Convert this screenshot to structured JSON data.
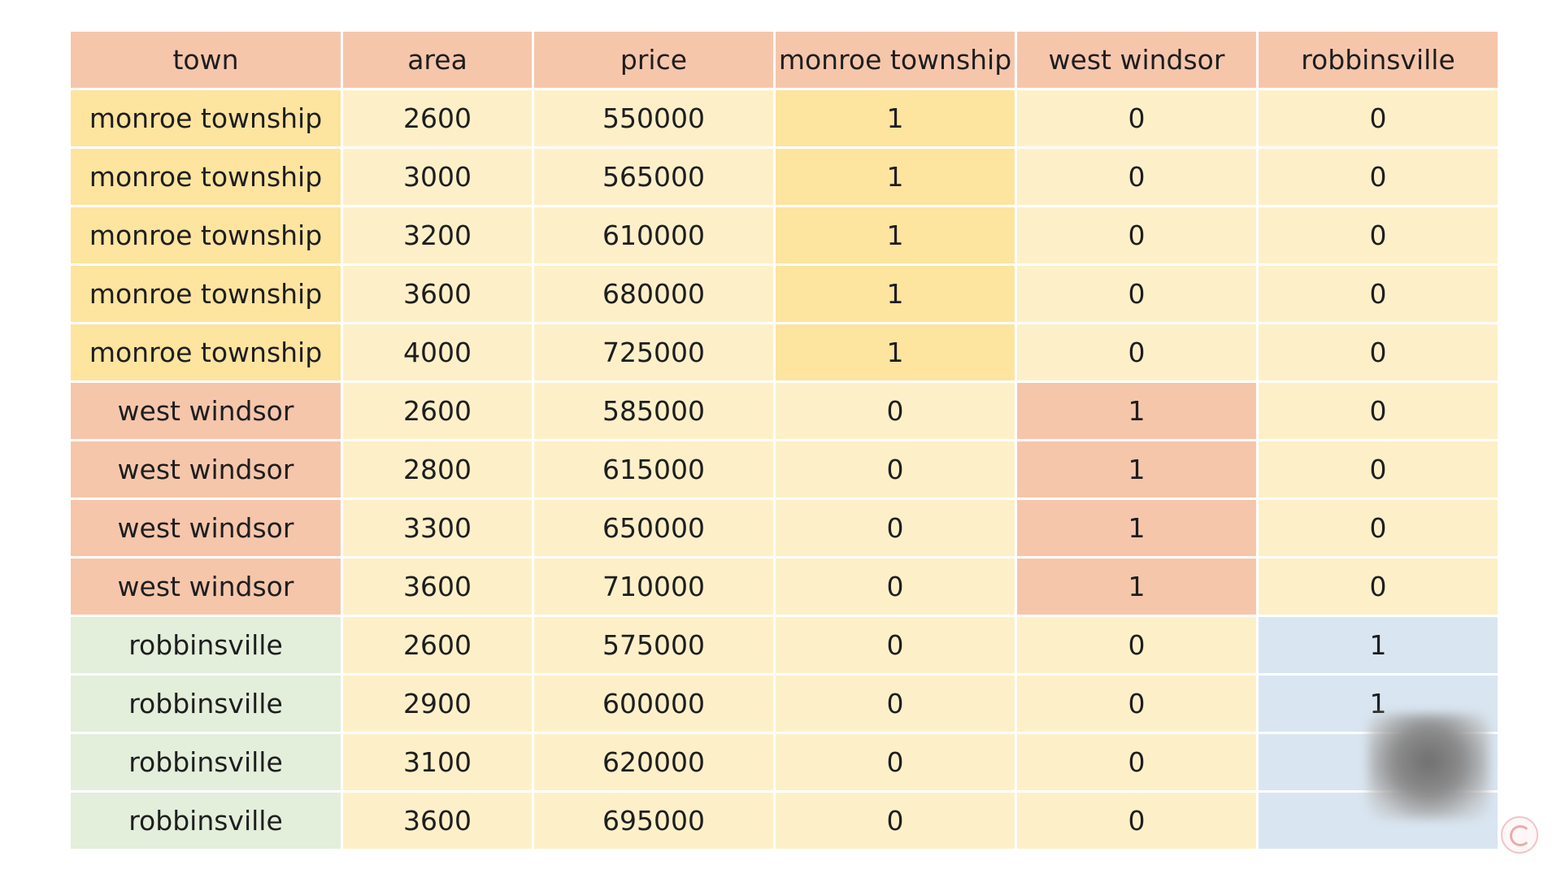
{
  "table": {
    "columns": [
      "town",
      "area",
      "price",
      "monroe township",
      "west windsor",
      "robbinsville"
    ],
    "rows": [
      [
        "monroe township",
        "2600",
        "550000",
        "1",
        "0",
        "0"
      ],
      [
        "monroe township",
        "3000",
        "565000",
        "1",
        "0",
        "0"
      ],
      [
        "monroe township",
        "3200",
        "610000",
        "1",
        "0",
        "0"
      ],
      [
        "monroe township",
        "3600",
        "680000",
        "1",
        "0",
        "0"
      ],
      [
        "monroe township",
        "4000",
        "725000",
        "1",
        "0",
        "0"
      ],
      [
        "west windsor",
        "2600",
        "585000",
        "0",
        "1",
        "0"
      ],
      [
        "west windsor",
        "2800",
        "615000",
        "0",
        "1",
        "0"
      ],
      [
        "west windsor",
        "3300",
        "650000",
        "0",
        "1",
        "0"
      ],
      [
        "west windsor",
        "3600",
        "710000",
        "0",
        "1",
        "0"
      ],
      [
        "robbinsville",
        "2600",
        "575000",
        "0",
        "0",
        "1"
      ],
      [
        "robbinsville",
        "2900",
        "600000",
        "0",
        "0",
        "1"
      ],
      [
        "robbinsville",
        "3100",
        "620000",
        "0",
        "0",
        ""
      ],
      [
        "robbinsville",
        "3600",
        "695000",
        "0",
        "0",
        ""
      ]
    ]
  },
  "colors": {
    "header": "#f6c6ab",
    "body": "#fdf0c9",
    "monroe township": "#fde49f",
    "west windsor": "#f6c6ab",
    "robbinsville": "#e3eedb",
    "robbinsville_dummy": "#d9e6f2"
  },
  "icons": {
    "watermark": "code-basics-logo-icon",
    "overlay": "webcam-overlay"
  }
}
